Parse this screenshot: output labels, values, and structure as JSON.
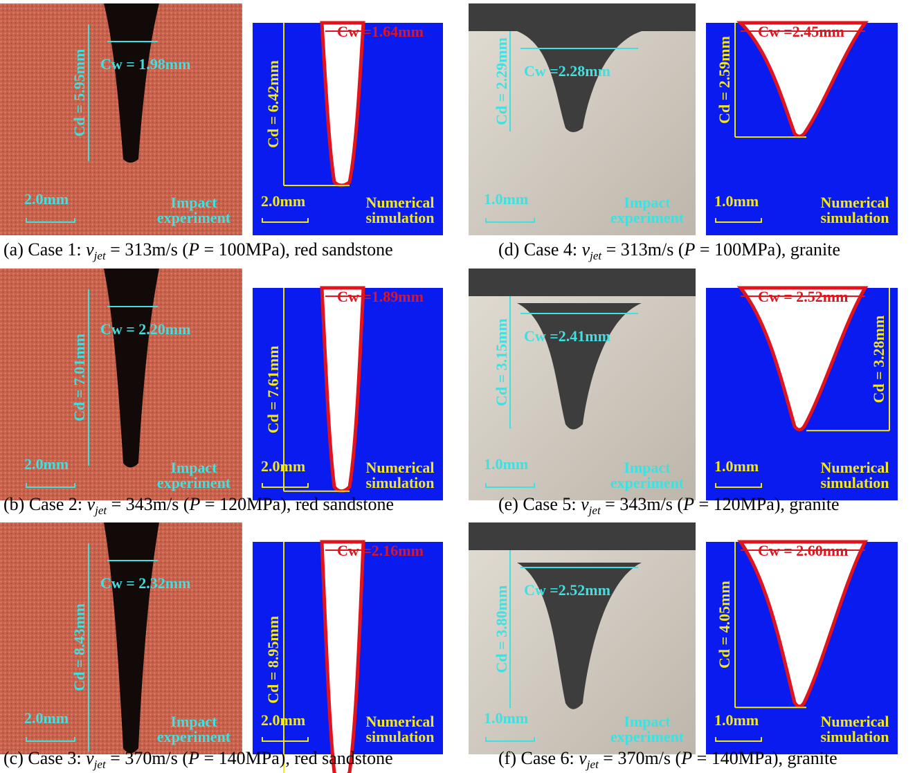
{
  "cases": [
    {
      "caption": {
        "case": "(a) Case 1: ",
        "v": "v",
        "sub": "jet",
        "speed": " = 313m/s (",
        "p": "P",
        "rest": " = 100MPa), red sandstone"
      },
      "experiment": {
        "cw": "Cw = 1.98mm",
        "cd": "Cd = 5.95mm",
        "scale": "2.0mm",
        "label": [
          "Impact",
          "experiment"
        ]
      },
      "simulation": {
        "cw": "Cw =1.64mm",
        "cd": "Cd = 6.42mm",
        "scale": "2.0mm",
        "label": [
          "Numerical",
          "simulation"
        ]
      }
    },
    {
      "caption": {
        "case": "(b) Case 2: ",
        "v": "v",
        "sub": "jet",
        "speed": " = 343m/s (",
        "p": "P",
        "rest": " = 120MPa), red sandstone"
      },
      "experiment": {
        "cw": "Cw = 2.20mm",
        "cd": "Cd = 7.01mm",
        "scale": "2.0mm",
        "label": [
          "Impact",
          "experiment"
        ]
      },
      "simulation": {
        "cw": "Cw =1.89mm",
        "cd": "Cd = 7.61mm",
        "scale": "2.0mm",
        "label": [
          "Numerical",
          "simulation"
        ]
      }
    },
    {
      "caption": {
        "case": "(c) Case 3: ",
        "v": "v",
        "sub": "jet",
        "speed": " = 370m/s (",
        "p": "P",
        "rest": " = 140MPa), red sandstone"
      },
      "experiment": {
        "cw": "Cw = 2.32mm",
        "cd": "Cd = 8.43mm",
        "scale": "2.0mm",
        "label": [
          "Impact",
          "experiment"
        ]
      },
      "simulation": {
        "cw": "Cw =2.16mm",
        "cd": "Cd = 8.95mm",
        "scale": "2.0mm",
        "label": [
          "Numerical",
          "simulation"
        ]
      }
    },
    {
      "caption": {
        "case": "(d) Case 4: ",
        "v": "v",
        "sub": "jet",
        "speed": " = 313m/s (",
        "p": "P",
        "rest": " = 100MPa), granite"
      },
      "experiment": {
        "cw": "Cw =2.28mm",
        "cd": "Cd = 2.29mm",
        "scale": "1.0mm",
        "label": [
          "Impact",
          "experiment"
        ]
      },
      "simulation": {
        "cw": "Cw =2.45mm",
        "cd": "Cd = 2.59mm",
        "scale": "1.0mm",
        "label": [
          "Numerical",
          "simulation"
        ]
      }
    },
    {
      "caption": {
        "case": "(e) Case 5: ",
        "v": "v",
        "sub": "jet",
        "speed": " = 343m/s (",
        "p": "P",
        "rest": " = 120MPa), granite"
      },
      "experiment": {
        "cw": "Cw =2.41mm",
        "cd": "Cd = 3.15mm",
        "scale": "1.0mm",
        "label": [
          "Impact",
          "experiment"
        ]
      },
      "simulation": {
        "cw": "Cw = 2.52mm",
        "cd": "Cd = 3.28mm",
        "scale": "1.0mm",
        "label": [
          "Numerical",
          "simulation"
        ]
      }
    },
    {
      "caption": {
        "case": "(f) Case 6: ",
        "v": "v",
        "sub": "jet",
        "speed": " = 370m/s (",
        "p": "P",
        "rest": " = 140MPa), granite"
      },
      "experiment": {
        "cw": "Cw =2.52mm",
        "cd": "Cd = 3.80mm",
        "scale": "1.0mm",
        "label": [
          "Impact",
          "experiment"
        ]
      },
      "simulation": {
        "cw": "Cw = 2.60mm",
        "cd": "Cd = 4.05mm",
        "scale": "1.0mm",
        "label": [
          "Numerical",
          "simulation"
        ]
      }
    }
  ]
}
